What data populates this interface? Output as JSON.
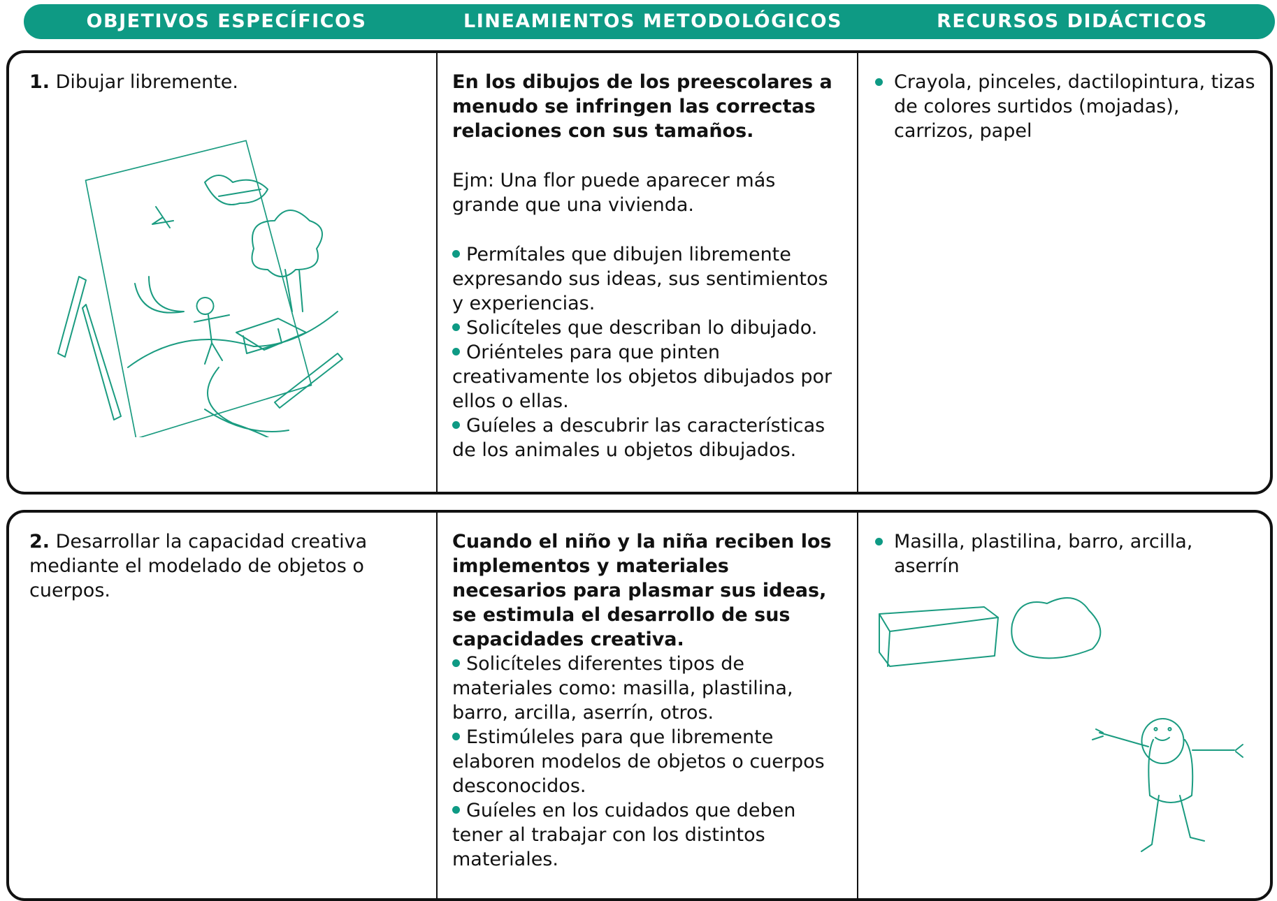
{
  "header": {
    "columns": [
      "OBJETIVOS ESPECÍFICOS",
      "LINEAMIENTOS METODOLÓGICOS",
      "RECURSOS DIDÁCTICOS"
    ]
  },
  "rows": [
    {
      "objective": {
        "number": "1.",
        "text": "Dibujar libremente."
      },
      "methodology": {
        "lead": "En los dibujos de los preescolares a menudo se infringen las correctas relaciones con sus tamaños.",
        "example": "Ejm:  Una flor puede aparecer más grande que una vivienda.",
        "bullets": [
          "Permítales que dibujen libremente expresando sus ideas, sus sentimientos y experiencias.",
          "Solicíteles que describan lo dibujado.",
          "Oriénteles  para que pinten creativamente los objetos dibujados por ellos o ellas.",
          "Guíeles a descubrir las características de los animales u objetos dibujados."
        ]
      },
      "resources": [
        "Crayola, pinceles, dactilopintura, tizas de colores surtidos (mojadas), carrizos, papel"
      ]
    },
    {
      "objective": {
        "number": "2.",
        "text": "Desarrollar la capacidad creativa mediante el modelado de objetos o cuerpos."
      },
      "methodology": {
        "lead": "Cuando el niño y la niña reciben los implementos y materiales necesarios para plasmar sus ideas, se estimula el desarrollo de sus capacidades creativa.",
        "bullets": [
          "Solicíteles diferentes tipos de materiales como: masilla, plastilina, barro, arcilla, aserrín, otros.",
          "Estimúleles para que libremente elaboren modelos de objetos o cuerpos desconocidos.",
          "Guíeles en los cuidados que deben tener al trabajar con los distintos materiales."
        ]
      },
      "resources": [
        "Masilla, plastilina, barro, arcilla, aserrín"
      ]
    }
  ]
}
